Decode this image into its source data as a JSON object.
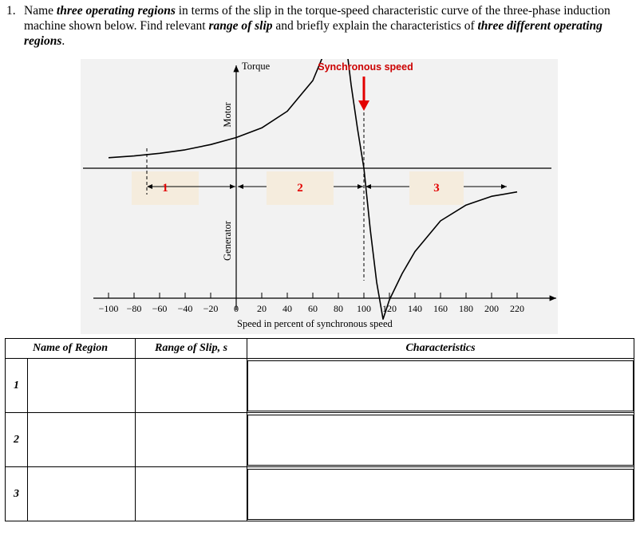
{
  "question": {
    "number": "1.",
    "parts": [
      {
        "text": "Name ",
        "emph": false
      },
      {
        "text": "three operating regions",
        "emph": true
      },
      {
        "text": " in terms of the slip in the torque-speed characteristic curve of the three-phase induction machine shown below. Find relevant ",
        "emph": false
      },
      {
        "text": "range of slip",
        "emph": true
      },
      {
        "text": " and briefly explain the characteristics of ",
        "emph": false
      },
      {
        "text": "three different operating regions",
        "emph": true
      },
      {
        "text": ".",
        "emph": false
      }
    ]
  },
  "figure": {
    "y_axis_label": "Torque",
    "x_axis_label": "Speed in percent of synchronous speed",
    "sync_label": "Synchronous speed",
    "motor_label": "Motor",
    "generator_label": "Generator",
    "region_labels": [
      "1",
      "2",
      "3"
    ],
    "x_ticks": [
      "−100",
      "−80",
      "−60",
      "−40",
      "−20",
      "0",
      "20",
      "40",
      "60",
      "80",
      "100",
      "120",
      "140",
      "160",
      "180",
      "200",
      "220"
    ],
    "colors": {
      "sync_arrow": "#e30000",
      "region_text": "#e30000",
      "region_box": "#f5ecdd",
      "sync_label": "#cc0000"
    }
  },
  "chart_data": {
    "type": "line",
    "title": "",
    "xlabel": "Speed in percent of synchronous speed",
    "ylabel": "Torque",
    "xlim": [
      -100,
      220
    ],
    "grid": false,
    "series": [
      {
        "x": [
          -100,
          -80,
          -60,
          -40,
          -20,
          0,
          20,
          40,
          60,
          70,
          75,
          80,
          85,
          90,
          95,
          100,
          105,
          110,
          115,
          120,
          130,
          140,
          160,
          180,
          200,
          220
        ],
        "y": [
          0.12,
          0.14,
          0.17,
          0.21,
          0.27,
          0.35,
          0.46,
          0.65,
          1.0,
          1.35,
          1.55,
          1.72,
          1.55,
          0.95,
          0.45,
          0.0,
          -0.7,
          -1.3,
          -1.72,
          -1.5,
          -1.2,
          -0.95,
          -0.6,
          -0.42,
          -0.32,
          -0.27
        ]
      }
    ],
    "annotations": [
      "Synchronous speed",
      "Motor",
      "Generator",
      "1",
      "2",
      "3"
    ]
  },
  "table": {
    "headers": [
      "Name of Region",
      "Range of Slip, s",
      "Characteristics"
    ],
    "rows": [
      {
        "num": "1",
        "name": "",
        "range": "",
        "characteristics": ""
      },
      {
        "num": "2",
        "name": "",
        "range": "",
        "characteristics": ""
      },
      {
        "num": "3",
        "name": "",
        "range": "",
        "characteristics": ""
      }
    ]
  }
}
